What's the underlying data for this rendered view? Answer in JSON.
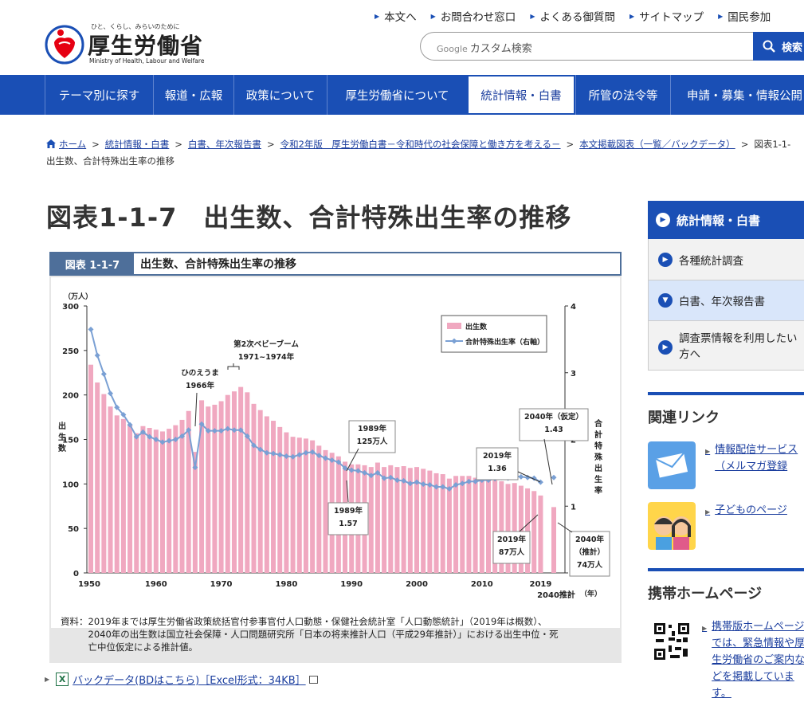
{
  "header": {
    "logo_tagline": "ひと、くらし、みらいのために",
    "logo_name": "厚生労働省",
    "logo_english": "Ministry of Health, Labour and Welfare",
    "top_links": [
      "本文へ",
      "お問合わせ窓口",
      "よくある御質問",
      "サイトマップ",
      "国民参加"
    ],
    "search_engine": "Google",
    "search_placeholder": "カスタム検索",
    "search_button": "検索"
  },
  "main_nav": [
    "テーマ別に探す",
    "報道・広報",
    "政策について",
    "厚生労働省について",
    "統計情報・白書",
    "所管の法令等",
    "申請・募集・情報公開"
  ],
  "breadcrumb": {
    "items": [
      "ホーム",
      "統計情報・白書",
      "白書、年次報告書",
      "令和2年版　厚生労働白書－令和時代の社会保障と働き方を考える－",
      "本文掲載図表（一覧／バックデータ）"
    ],
    "current_part1": "図表1-1-",
    "current_part2": "出生数、合計特殊出生率の推移"
  },
  "page_title": "図表1-1-7　出生数、合計特殊出生率の推移",
  "figure": {
    "label": "図表 1-1-7",
    "title": "出生数、合計特殊出生率の推移",
    "source_lines": [
      "資料：2019年までは厚生労働省政策統括官付参事官付人口動態・保健社会統計室「人口動態統計」（2019年は概数）、",
      "　　　2040年の出生数は国立社会保障・人口問題研究所「日本の将来推計人口（平成29年推計）」における出生中位・死",
      "　　　亡中位仮定による推計値。"
    ]
  },
  "chart_data": {
    "type": "bar",
    "left_axis": {
      "unit": "（万人）",
      "label": "出生数",
      "ylim": [
        0,
        300
      ],
      "ticks": [
        0,
        50,
        100,
        150,
        200,
        250,
        300
      ]
    },
    "right_axis": {
      "label": "合計特殊出生率",
      "ylim": [
        0,
        4
      ],
      "ticks": [
        0,
        1,
        2,
        3,
        4
      ]
    },
    "x_unit": "（年）",
    "x_ticks": [
      "1950",
      "1960",
      "1970",
      "1980",
      "1990",
      "2000",
      "2010",
      "2019",
      "2040推計"
    ],
    "legend": [
      "出生数",
      "合計特殊出生率（右軸）"
    ],
    "legend_position": "top-right",
    "years": [
      1950,
      1951,
      1952,
      1953,
      1954,
      1955,
      1956,
      1957,
      1958,
      1959,
      1960,
      1961,
      1962,
      1963,
      1964,
      1965,
      1966,
      1967,
      1968,
      1969,
      1970,
      1971,
      1972,
      1973,
      1974,
      1975,
      1976,
      1977,
      1978,
      1979,
      1980,
      1981,
      1982,
      1983,
      1984,
      1985,
      1986,
      1987,
      1988,
      1989,
      1990,
      1991,
      1992,
      1993,
      1994,
      1995,
      1996,
      1997,
      1998,
      1999,
      2000,
      2001,
      2002,
      2003,
      2004,
      2005,
      2006,
      2007,
      2008,
      2009,
      2010,
      2011,
      2012,
      2013,
      2014,
      2015,
      2016,
      2017,
      2018,
      2019
    ],
    "series": [
      {
        "name": "出生数",
        "unit": "万人",
        "values": [
          234,
          214,
          201,
          187,
          177,
          173,
          167,
          157,
          165,
          163,
          161,
          159,
          162,
          166,
          172,
          182,
          136,
          194,
          187,
          189,
          193,
          200,
          204,
          209,
          203,
          190,
          183,
          176,
          171,
          164,
          158,
          153,
          152,
          151,
          149,
          143,
          138,
          135,
          131,
          125,
          122,
          122,
          121,
          119,
          124,
          119,
          121,
          119,
          120,
          118,
          119,
          117,
          115,
          112,
          111,
          106,
          109,
          109,
          109,
          107,
          107,
          105,
          104,
          103,
          100,
          101,
          98,
          95,
          92,
          87
        ]
      },
      {
        "name": "合計特殊出生率",
        "unit": "",
        "values": [
          3.65,
          3.26,
          2.98,
          2.69,
          2.48,
          2.37,
          2.22,
          2.04,
          2.11,
          2.04,
          2.0,
          1.96,
          1.98,
          2.0,
          2.05,
          2.14,
          1.58,
          2.23,
          2.13,
          2.13,
          2.13,
          2.16,
          2.14,
          2.14,
          2.05,
          1.91,
          1.85,
          1.8,
          1.79,
          1.77,
          1.75,
          1.74,
          1.77,
          1.8,
          1.81,
          1.76,
          1.72,
          1.69,
          1.66,
          1.57,
          1.54,
          1.53,
          1.5,
          1.46,
          1.5,
          1.42,
          1.43,
          1.39,
          1.38,
          1.34,
          1.36,
          1.33,
          1.32,
          1.29,
          1.29,
          1.26,
          1.32,
          1.34,
          1.37,
          1.37,
          1.39,
          1.39,
          1.41,
          1.43,
          1.42,
          1.45,
          1.44,
          1.43,
          1.42,
          1.36
        ]
      }
    ],
    "projection": {
      "year": "2040",
      "births": 74,
      "tfr": 1.43
    },
    "annotations": [
      {
        "lines": [
          "第2次ベビーブーム",
          "1971~1974年"
        ]
      },
      {
        "lines": [
          "ひのえうま",
          "1966年"
        ]
      },
      {
        "lines": [
          "1989年",
          "125万人"
        ]
      },
      {
        "lines": [
          "1989年",
          "1.57"
        ]
      },
      {
        "lines": [
          "2019年",
          "1.36"
        ]
      },
      {
        "lines": [
          "2040年（仮定）",
          "1.43"
        ]
      },
      {
        "lines": [
          "2019年",
          "87万人"
        ]
      },
      {
        "lines": [
          "2040年",
          "（推計）",
          "74万人"
        ]
      }
    ],
    "colors": {
      "bars": "#f0a8c0",
      "line": "#7aa0d4"
    }
  },
  "backdata": {
    "label": "バックデータ(BDはこちら)［Excel形式：34KB］"
  },
  "sidebar": {
    "heading": "統計情報・白書",
    "items": [
      "各種統計調査",
      "白書、年次報告書",
      "調査票情報を利用したい方へ"
    ],
    "related_heading": "関連リンク",
    "related_links": [
      "情報配信サービス（メルマガ登録",
      "子どものページ"
    ],
    "mobile_heading": "携帯ホームページ",
    "mobile_text": "携帯版ホームページでは、緊急情報や厚生労働省のご案内などを掲載しています。"
  }
}
